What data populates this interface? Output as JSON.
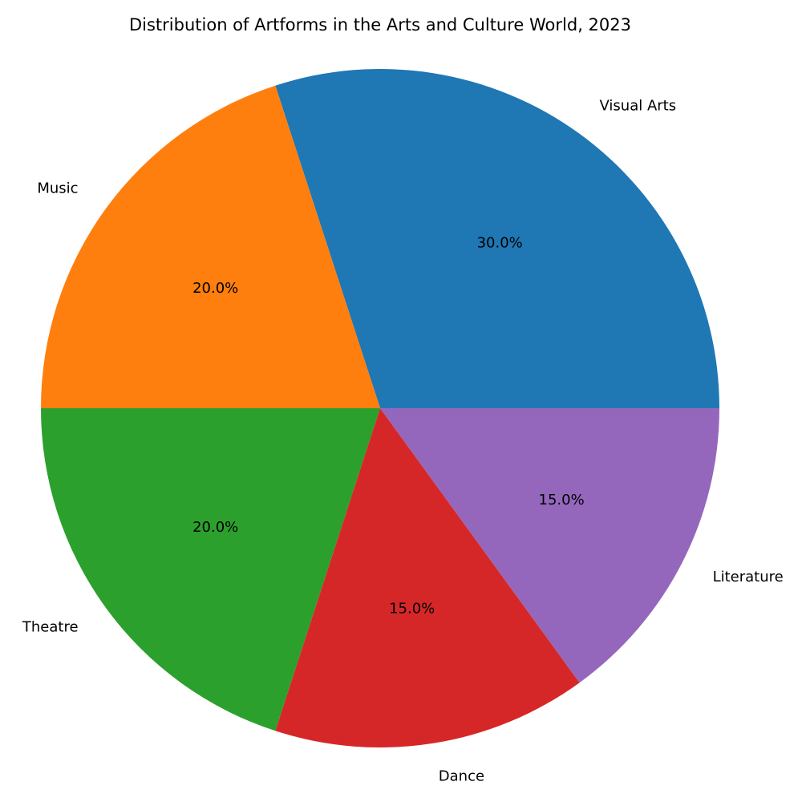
{
  "chart_data": {
    "type": "pie",
    "title": "Distribution of Artforms in the Arts and Culture World, 2023",
    "start_angle_deg": 0,
    "direction": "counterclockwise",
    "slices": [
      {
        "label": "Visual Arts",
        "value": 30.0,
        "pct_label": "30.0%",
        "color": "#1f77b4"
      },
      {
        "label": "Music",
        "value": 20.0,
        "pct_label": "20.0%",
        "color": "#ff7f0e"
      },
      {
        "label": "Theatre",
        "value": 20.0,
        "pct_label": "20.0%",
        "color": "#2ca02c"
      },
      {
        "label": "Dance",
        "value": 15.0,
        "pct_label": "15.0%",
        "color": "#d62728"
      },
      {
        "label": "Literature",
        "value": 15.0,
        "pct_label": "15.0%",
        "color": "#9467bd"
      }
    ]
  }
}
